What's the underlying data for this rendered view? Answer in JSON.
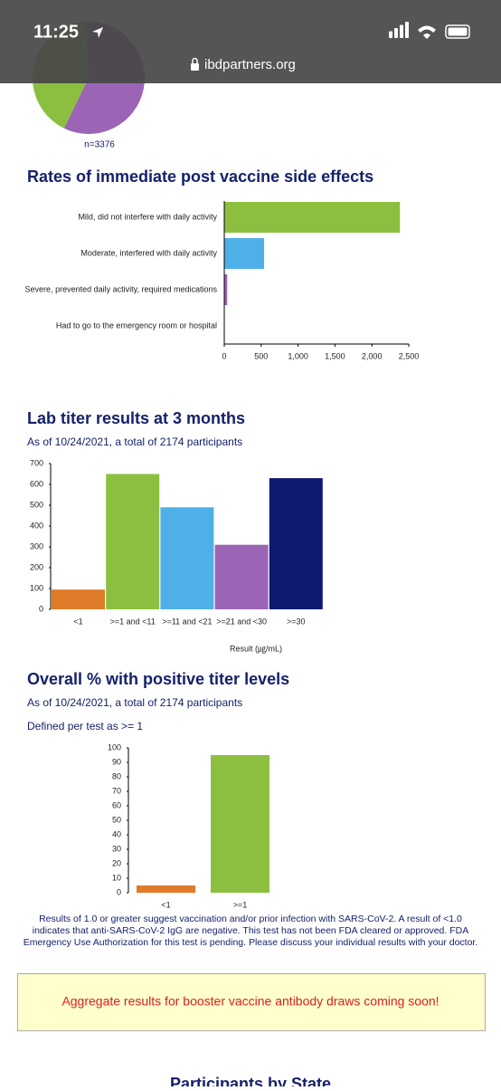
{
  "status_bar": {
    "time": "11:25",
    "url": "ibdpartners.org"
  },
  "chart_data": [
    {
      "type": "pie",
      "values": [
        42,
        58
      ],
      "value_labels": [
        null,
        "58%"
      ],
      "colors": [
        "#8cbf3f",
        "#9b64b5"
      ],
      "note": "n=3376"
    },
    {
      "type": "hbar",
      "title": "Rates of immediate post vaccine side effects",
      "categories": [
        "Mild, did not interfere with daily activity",
        "Moderate, interfered with daily activity",
        "Severe, prevented daily activity, required medications",
        "Had to go to the emergency room or hospital"
      ],
      "values": [
        2380,
        540,
        40,
        0
      ],
      "colors": [
        "#8cbf3f",
        "#4fb0e8",
        "#9b64b5",
        "#15216b"
      ],
      "xlim": [
        0,
        2500
      ],
      "xticks": [
        0,
        500,
        {
          "value": 1000,
          "label": "1,000"
        },
        {
          "value": 1500,
          "label": "1,500"
        },
        {
          "value": 2000,
          "label": "2,000"
        },
        {
          "value": 2500,
          "label": "2,500"
        }
      ]
    },
    {
      "type": "bar",
      "title": "Lab titer results at 3 months",
      "subtitle": "As of 10/24/2021, a total of 2174 participants",
      "categories": [
        "<1",
        ">=1 and <11",
        ">=11 and <21",
        ">=21 and <30",
        ">=30"
      ],
      "values": [
        95,
        650,
        490,
        310,
        630
      ],
      "colors": [
        "#e07b2a",
        "#8cbf3f",
        "#4fb0e8",
        "#9b64b5",
        "#0d1a6e"
      ],
      "ylim": [
        0,
        700
      ],
      "yticks": [
        0,
        100,
        200,
        300,
        400,
        500,
        600,
        700
      ],
      "x_label": "Result (㎍/mL)"
    },
    {
      "type": "bar",
      "title": "Overall % with positive titer levels",
      "subtitle": "As of 10/24/2021, a total of 2174 participants",
      "note": "Defined per test as >= 1",
      "categories": [
        "<1",
        ">=1"
      ],
      "values": [
        5,
        95
      ],
      "colors": [
        "#e07b2a",
        "#8cbf3f"
      ],
      "ylim": [
        0,
        100
      ],
      "yticks": [
        0,
        10,
        20,
        30,
        40,
        50,
        60,
        70,
        80,
        90,
        100
      ]
    }
  ],
  "footnote": [
    "Results of 1.0 or greater suggest vaccination and/or prior infection with SARS-CoV-2. A result of <1.0",
    "indicates that anti-SARS-CoV-2 IgG are negative. This test has not been FDA cleared or approved. FDA",
    "Emergency Use Authorization for this test is pending. Please discuss your individual results with your doctor."
  ],
  "notice": "Aggregate results for booster vaccine antibody draws coming soon!",
  "next_heading": "Participants by State"
}
